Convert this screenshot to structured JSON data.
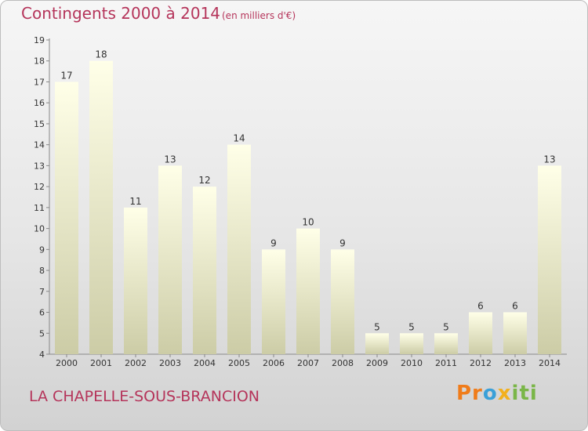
{
  "title": "Contingents 2000 à 2014",
  "unit": "(en milliers d'€)",
  "commune": "LA CHAPELLE-SOUS-BRANCION",
  "logo": {
    "letters": [
      "Pr",
      "o",
      "x",
      "iti"
    ]
  },
  "colors": {
    "accent": "#b5345a",
    "bar_top": "#ffffe8",
    "bar_bottom": "#cccca6"
  },
  "chart_data": {
    "type": "bar",
    "categories": [
      "2000",
      "2001",
      "2002",
      "2003",
      "2004",
      "2005",
      "2006",
      "2007",
      "2008",
      "2009",
      "2010",
      "2011",
      "2012",
      "2013",
      "2014"
    ],
    "values": [
      17,
      18,
      11,
      13,
      12,
      14,
      9,
      10,
      9,
      5,
      5,
      5,
      6,
      6,
      13
    ],
    "ylim": [
      4,
      19
    ],
    "yticks": [
      4,
      5,
      6,
      7,
      8,
      9,
      10,
      11,
      12,
      13,
      14,
      15,
      16,
      17,
      18,
      19
    ],
    "data_labels": true,
    "grid": false,
    "legend": false
  }
}
